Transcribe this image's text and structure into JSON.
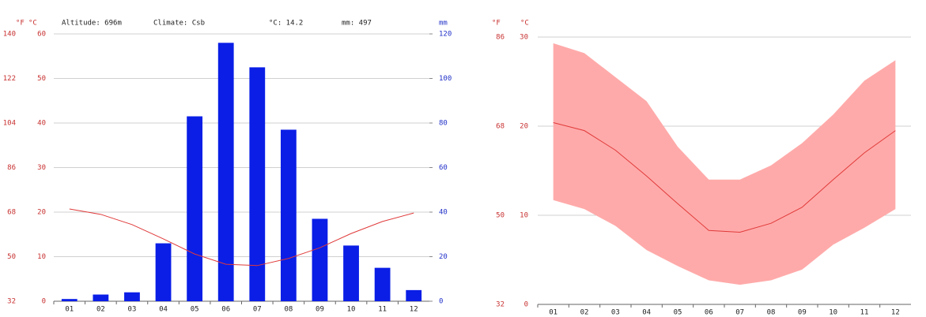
{
  "chart_data": [
    {
      "type": "bar",
      "annotations": [
        "Altitude: 696m",
        "Climate: Csb",
        "°C: 14.2",
        "mm: 497"
      ],
      "unit_labels": [
        "°F",
        "°C",
        "mm"
      ],
      "categories": [
        "01",
        "02",
        "03",
        "04",
        "05",
        "06",
        "07",
        "08",
        "09",
        "10",
        "11",
        "12"
      ],
      "series": [
        {
          "kind": "bar",
          "axis": "y2",
          "color": "#0a1ee6",
          "values": [
            1,
            3,
            4,
            26,
            83,
            116,
            105,
            77,
            37,
            25,
            15,
            5
          ]
        },
        {
          "kind": "line",
          "axis": "y",
          "color": "#e03a3a",
          "values": [
            20.7,
            19.5,
            17.2,
            14.0,
            10.6,
            8.3,
            8.0,
            9.6,
            12.0,
            15.2,
            17.9,
            19.8
          ]
        }
      ],
      "ylim": [
        0,
        60
      ],
      "yticks": [
        0,
        10,
        20,
        30,
        40,
        50,
        60
      ],
      "fticks": [
        32,
        50,
        68,
        86,
        104,
        122,
        140
      ],
      "y2lim": [
        0,
        120
      ],
      "y2ticks": [
        0,
        20,
        40,
        60,
        80,
        100,
        120
      ],
      "grid": true
    },
    {
      "type": "range",
      "unit_labels": [
        "°F",
        "°C"
      ],
      "categories": [
        "01",
        "02",
        "03",
        "04",
        "05",
        "06",
        "07",
        "08",
        "09",
        "10",
        "11",
        "12"
      ],
      "series": [
        {
          "kind": "line",
          "color": "#e03a3a",
          "values": [
            20.4,
            19.5,
            17.3,
            14.4,
            11.3,
            8.3,
            8.1,
            9.1,
            10.9,
            14.0,
            17.0,
            19.5
          ]
        },
        {
          "kind": "high",
          "color": "#ffaaaa",
          "values": [
            29.3,
            28.2,
            25.5,
            22.8,
            17.7,
            14.0,
            14.0,
            15.6,
            18.1,
            21.3,
            25.1,
            27.4
          ]
        },
        {
          "kind": "low",
          "color": "#ffaaaa",
          "values": [
            11.7,
            10.7,
            8.8,
            6.1,
            4.3,
            2.7,
            2.2,
            2.7,
            3.9,
            6.7,
            8.6,
            10.7
          ]
        }
      ],
      "ylim": [
        0,
        30
      ],
      "yticks": [
        0,
        10,
        20,
        30
      ],
      "fticks": [
        32,
        50,
        68,
        86
      ],
      "grid": true
    }
  ]
}
